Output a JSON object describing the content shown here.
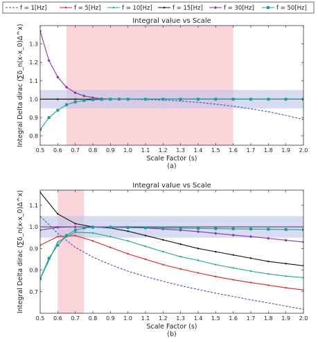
{
  "legend": {
    "items": [
      {
        "label": "f = 1[Hz]",
        "color": "#3355bb",
        "dash": true,
        "marker": "none"
      },
      {
        "label": "f = 5[Hz]",
        "color": "#dd2222",
        "dash": false,
        "marker": "dot"
      },
      {
        "label": "f = 10[Hz]",
        "color": "#18a888",
        "dash": false,
        "marker": "dot"
      },
      {
        "label": "f = 15[Hz]",
        "color": "#111111",
        "dash": false,
        "marker": "dot"
      },
      {
        "label": "f = 30[Hz]",
        "color": "#8833aa",
        "dash": false,
        "marker": "diamond"
      },
      {
        "label": "f = 50[Hz]",
        "color": "#1a9a9a",
        "dash": false,
        "marker": "square"
      }
    ]
  },
  "chart_data": [
    {
      "type": "line",
      "title": "Integral value vs Scale",
      "xlabel": "Scale Factor (s)",
      "ylabel": "Integral Delta dirac (∑δ_n(x-x_0)Δ^x)",
      "panel_label": "(a)",
      "xlim": [
        0.5,
        2.0
      ],
      "ylim": [
        0.75,
        1.4
      ],
      "x_ticks": [
        "0.5",
        "0.6",
        "0.7",
        "0.8",
        "0.9",
        "1.0",
        "1.1",
        "1.2",
        "1.3",
        "1.4",
        "1.5",
        "1.6",
        "1.7",
        "1.8",
        "1.9",
        "2.0"
      ],
      "y_ticks": [
        "0.8",
        "0.9",
        "1.0",
        "1.1",
        "1.2",
        "1.3"
      ],
      "shaded_x_region": [
        0.65,
        1.6
      ],
      "shaded_y_band": [
        0.95,
        1.05
      ],
      "reference_line_y": 1.0,
      "series": [
        {
          "name": "f = 1[Hz]",
          "x": [
            0.5,
            0.6,
            0.7,
            0.8,
            0.9,
            1.0,
            1.1,
            1.2,
            1.3,
            1.4,
            1.5,
            1.6,
            1.7,
            1.8,
            1.9,
            2.0
          ],
          "values": [
            1.0,
            1.0,
            1.0,
            1.0,
            1.0,
            1.0,
            0.998,
            0.995,
            0.99,
            0.983,
            0.973,
            0.962,
            0.948,
            0.932,
            0.912,
            0.89
          ]
        },
        {
          "name": "f = 5[Hz]",
          "x": [
            0.5,
            0.6,
            0.7,
            0.8,
            0.9,
            1.0,
            1.1,
            1.2,
            1.3,
            1.4,
            1.5,
            1.6,
            1.7,
            1.8,
            1.9,
            2.0
          ],
          "values": [
            1.0,
            1.0,
            1.0,
            1.0,
            1.0,
            1.0,
            1.0,
            1.0,
            1.0,
            1.0,
            1.0,
            1.0,
            1.0,
            1.0,
            1.0,
            1.0
          ]
        },
        {
          "name": "f = 10[Hz]",
          "x": [
            0.5,
            0.6,
            0.7,
            0.8,
            0.9,
            1.0,
            1.1,
            1.2,
            1.3,
            1.4,
            1.5,
            1.6,
            1.7,
            1.8,
            1.9,
            2.0
          ],
          "values": [
            1.0,
            1.0,
            1.0,
            1.0,
            1.0,
            1.0,
            1.0,
            1.0,
            1.0,
            1.0,
            1.0,
            1.0,
            1.0,
            1.0,
            1.0,
            1.0
          ]
        },
        {
          "name": "f = 15[Hz]",
          "x": [
            0.5,
            0.6,
            0.7,
            0.8,
            0.9,
            1.0,
            1.1,
            1.2,
            1.3,
            1.4,
            1.5,
            1.6,
            1.7,
            1.8,
            1.9,
            2.0
          ],
          "values": [
            1.0,
            1.0,
            1.0,
            1.0,
            1.0,
            1.0,
            1.0,
            1.0,
            1.0,
            1.0,
            1.0,
            1.0,
            1.0,
            1.0,
            1.0,
            1.0
          ]
        },
        {
          "name": "f = 30[Hz]",
          "x": [
            0.5,
            0.55,
            0.6,
            0.65,
            0.7,
            0.75,
            0.8,
            0.85,
            0.9,
            0.95,
            1.0
          ],
          "values": [
            1.37,
            1.21,
            1.12,
            1.065,
            1.035,
            1.018,
            1.008,
            1.003,
            1.001,
            1.0,
            1.0
          ]
        },
        {
          "name": "f = 50[Hz]",
          "x": [
            0.5,
            0.55,
            0.6,
            0.65,
            0.7,
            0.75,
            0.8,
            0.85,
            0.9,
            0.95,
            1.0,
            1.1,
            1.2,
            1.3,
            1.4,
            1.5,
            1.6,
            1.7,
            1.8,
            1.9,
            2.0
          ],
          "values": [
            0.835,
            0.9,
            0.94,
            0.97,
            0.985,
            0.993,
            0.997,
            0.999,
            1.0,
            1.0,
            1.0,
            1.0,
            1.0,
            1.0,
            1.0,
            1.0,
            1.0,
            1.0,
            1.0,
            1.0,
            1.0
          ]
        }
      ]
    },
    {
      "type": "line",
      "title": "Integral value vs Scale",
      "xlabel": "Scale Factor (s)",
      "ylabel": "Integral Delta dirac (∑δ_n(x-x_0)Δ^x)",
      "panel_label": "(b)",
      "xlim": [
        0.5,
        2.0
      ],
      "ylim": [
        0.6,
        1.17
      ],
      "x_ticks": [
        "0.5",
        "0.6",
        "0.7",
        "0.8",
        "0.9",
        "1.0",
        "1.1",
        "1.2",
        "1.3",
        "1.4",
        "1.5",
        "1.6",
        "1.7",
        "1.8",
        "1.9",
        "2.0"
      ],
      "y_ticks": [
        "0.7",
        "0.8",
        "0.9",
        "1.0",
        "1.1"
      ],
      "shaded_x_region": [
        0.6,
        0.75
      ],
      "shaded_y_band": [
        0.95,
        1.05
      ],
      "reference_line_y": 1.0,
      "series": [
        {
          "name": "f = 1[Hz]",
          "x": [
            0.5,
            0.6,
            0.7,
            0.8,
            0.9,
            1.0,
            1.1,
            1.2,
            1.3,
            1.4,
            1.5,
            1.6,
            1.7,
            1.8,
            1.9,
            2.0
          ],
          "values": [
            1.05,
            0.97,
            0.905,
            0.86,
            0.825,
            0.795,
            0.77,
            0.748,
            0.728,
            0.71,
            0.693,
            0.678,
            0.662,
            0.648,
            0.633,
            0.618
          ]
        },
        {
          "name": "f = 5[Hz]",
          "x": [
            0.5,
            0.6,
            0.7,
            0.8,
            0.9,
            1.0,
            1.1,
            1.2,
            1.3,
            1.4,
            1.5,
            1.6,
            1.7,
            1.8,
            1.9,
            2.0
          ],
          "values": [
            0.915,
            0.955,
            0.96,
            0.935,
            0.905,
            0.875,
            0.85,
            0.825,
            0.805,
            0.787,
            0.77,
            0.755,
            0.742,
            0.73,
            0.718,
            0.708
          ]
        },
        {
          "name": "f = 10[Hz]",
          "x": [
            0.5,
            0.6,
            0.7,
            0.8,
            0.9,
            1.0,
            1.1,
            1.2,
            1.3,
            1.4,
            1.5,
            1.6,
            1.7,
            1.8,
            1.9,
            2.0
          ],
          "values": [
            0.76,
            0.93,
            0.975,
            0.972,
            0.955,
            0.935,
            0.91,
            0.885,
            0.862,
            0.845,
            0.825,
            0.81,
            0.795,
            0.782,
            0.772,
            0.765
          ]
        },
        {
          "name": "f = 15[Hz]",
          "x": [
            0.5,
            0.6,
            0.7,
            0.8,
            0.9,
            1.0,
            1.1,
            1.2,
            1.3,
            1.4,
            1.5,
            1.6,
            1.7,
            1.8,
            1.9,
            2.0
          ],
          "values": [
            1.16,
            1.06,
            1.015,
            1.0,
            0.995,
            0.98,
            0.96,
            0.94,
            0.92,
            0.9,
            0.885,
            0.87,
            0.855,
            0.84,
            0.83,
            0.82
          ]
        },
        {
          "name": "f = 30[Hz]",
          "x": [
            0.5,
            0.6,
            0.7,
            0.8,
            0.9,
            1.0,
            1.1,
            1.2,
            1.3,
            1.4,
            1.5,
            1.6,
            1.7,
            1.8,
            1.9,
            2.0
          ],
          "values": [
            0.985,
            0.998,
            1.0,
            1.0,
            1.0,
            0.998,
            0.995,
            0.99,
            0.985,
            0.978,
            0.97,
            0.962,
            0.955,
            0.947,
            0.938,
            0.93
          ]
        },
        {
          "name": "f = 50[Hz]",
          "x": [
            0.5,
            0.55,
            0.6,
            0.65,
            0.7,
            0.75,
            0.8,
            0.9,
            1.0,
            1.1,
            1.2,
            1.3,
            1.4,
            1.5,
            1.6,
            1.7,
            1.8,
            1.9,
            2.0
          ],
          "values": [
            0.76,
            0.855,
            0.915,
            0.96,
            0.985,
            0.995,
            0.998,
            0.998,
            0.997,
            0.996,
            0.995,
            0.994,
            0.993,
            0.992,
            0.991,
            0.99,
            0.989,
            0.988,
            0.987
          ]
        }
      ]
    }
  ]
}
